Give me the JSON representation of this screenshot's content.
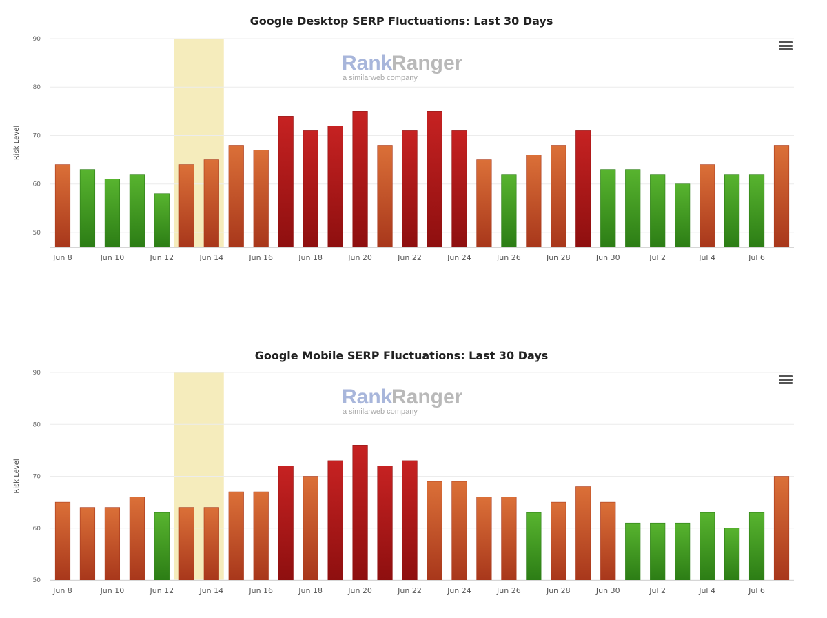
{
  "colors": {
    "high": "#b71c1c",
    "medium": "#d2632d",
    "low": "#4aa827",
    "highlight_band": "#f5ecbc",
    "gridline": "#ececec"
  },
  "icons": {
    "menu": "hamburger-menu-icon"
  },
  "watermark": {
    "brand_part1": "Rank",
    "brand_part2": "Ranger",
    "tagline": "a similarweb company"
  },
  "chart_data": [
    {
      "id": "desktop",
      "type": "bar",
      "title": "Google Desktop SERP Fluctuations: Last 30 Days",
      "xlabel": "",
      "ylabel": "Risk Level",
      "ylim": [
        47,
        90
      ],
      "yticks": [
        50,
        60,
        70,
        80,
        90
      ],
      "grid": true,
      "highlight_range": [
        "Jun 13",
        "Jun 14"
      ],
      "categories": [
        "Jun 8",
        "Jun 9",
        "Jun 10",
        "Jun 11",
        "Jun 12",
        "Jun 13",
        "Jun 14",
        "Jun 15",
        "Jun 16",
        "Jun 17",
        "Jun 18",
        "Jun 19",
        "Jun 20",
        "Jun 21",
        "Jun 22",
        "Jun 23",
        "Jun 24",
        "Jun 25",
        "Jun 26",
        "Jun 27",
        "Jun 28",
        "Jun 29",
        "Jun 30",
        "Jul 1",
        "Jul 2",
        "Jul 3",
        "Jul 4",
        "Jul 5",
        "Jul 6",
        "Jul 7"
      ],
      "tick_labels": [
        "Jun 8",
        "Jun 10",
        "Jun 12",
        "Jun 14",
        "Jun 16",
        "Jun 18",
        "Jun 20",
        "Jun 22",
        "Jun 24",
        "Jun 26",
        "Jun 28",
        "Jun 30",
        "Jul 2",
        "Jul 4",
        "Jul 6"
      ],
      "values": [
        64,
        63,
        61,
        62,
        58,
        64,
        65,
        68,
        67,
        74,
        71,
        72,
        75,
        68,
        71,
        75,
        71,
        65,
        62,
        66,
        68,
        71,
        63,
        63,
        62,
        60,
        64,
        62,
        62,
        68
      ],
      "levels": [
        "medium",
        "low",
        "low",
        "low",
        "low",
        "medium",
        "medium",
        "medium",
        "medium",
        "high",
        "high",
        "high",
        "high",
        "medium",
        "high",
        "high",
        "high",
        "medium",
        "low",
        "medium",
        "medium",
        "high",
        "low",
        "low",
        "low",
        "low",
        "medium",
        "low",
        "low",
        "medium"
      ]
    },
    {
      "id": "mobile",
      "type": "bar",
      "title": "Google Mobile SERP Fluctuations: Last 30 Days",
      "xlabel": "",
      "ylabel": "Risk Level",
      "ylim": [
        50,
        90
      ],
      "yticks": [
        50,
        60,
        70,
        80,
        90
      ],
      "grid": true,
      "highlight_range": [
        "Jun 13",
        "Jun 14"
      ],
      "categories": [
        "Jun 8",
        "Jun 9",
        "Jun 10",
        "Jun 11",
        "Jun 12",
        "Jun 13",
        "Jun 14",
        "Jun 15",
        "Jun 16",
        "Jun 17",
        "Jun 18",
        "Jun 19",
        "Jun 20",
        "Jun 21",
        "Jun 22",
        "Jun 23",
        "Jun 24",
        "Jun 25",
        "Jun 26",
        "Jun 27",
        "Jun 28",
        "Jun 29",
        "Jun 30",
        "Jul 1",
        "Jul 2",
        "Jul 3",
        "Jul 4",
        "Jul 5",
        "Jul 6",
        "Jul 7"
      ],
      "tick_labels": [
        "Jun 8",
        "Jun 10",
        "Jun 12",
        "Jun 14",
        "Jun 16",
        "Jun 18",
        "Jun 20",
        "Jun 22",
        "Jun 24",
        "Jun 26",
        "Jun 28",
        "Jun 30",
        "Jul 2",
        "Jul 4",
        "Jul 6"
      ],
      "values": [
        65,
        64,
        64,
        66,
        63,
        64,
        64,
        67,
        67,
        72,
        70,
        73,
        76,
        72,
        73,
        69,
        69,
        66,
        66,
        63,
        65,
        68,
        65,
        61,
        61,
        61,
        63,
        60,
        63,
        70
      ],
      "levels": [
        "medium",
        "medium",
        "medium",
        "medium",
        "low",
        "medium",
        "medium",
        "medium",
        "medium",
        "high",
        "medium",
        "high",
        "high",
        "high",
        "high",
        "medium",
        "medium",
        "medium",
        "medium",
        "low",
        "medium",
        "medium",
        "medium",
        "low",
        "low",
        "low",
        "low",
        "low",
        "low",
        "medium"
      ]
    }
  ]
}
